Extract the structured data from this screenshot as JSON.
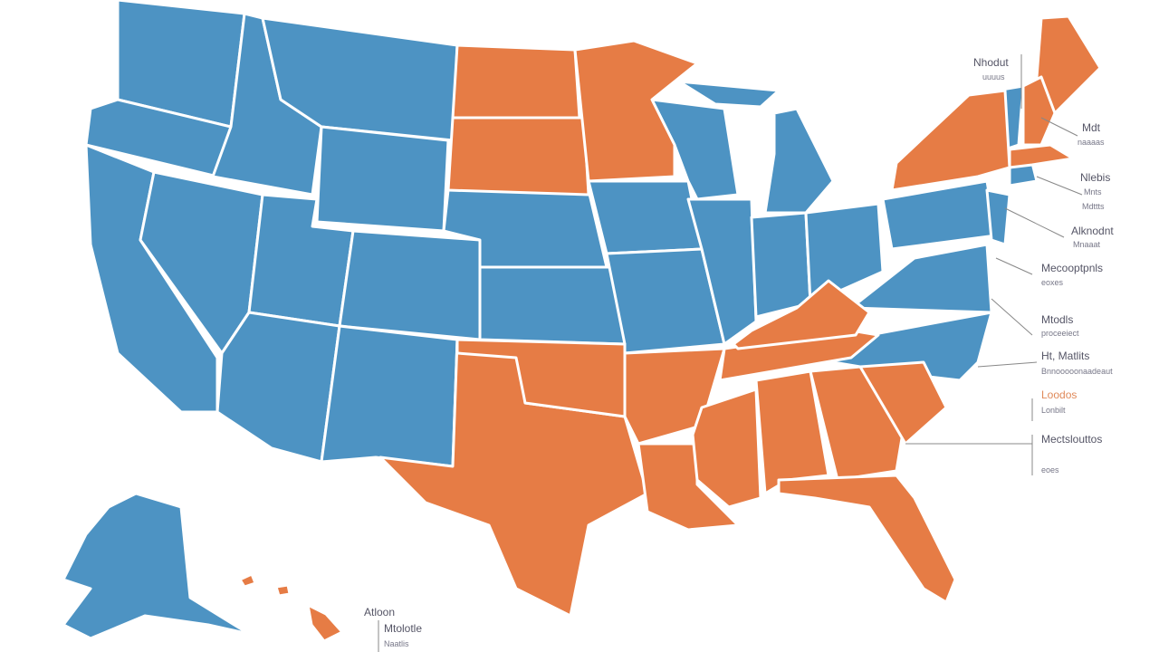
{
  "map": {
    "callouts": [
      {
        "lines": [
          "Nhodut",
          "uuuus"
        ]
      },
      {
        "lines": [
          "Mdt",
          "naaaas"
        ]
      },
      {
        "lines": [
          "Nlebis",
          "Mnts",
          "Mdttts"
        ]
      },
      {
        "lines": [
          "Alknodnt",
          "Mnaaat"
        ]
      },
      {
        "lines": [
          "Mecooptpnls",
          "eoxes"
        ]
      },
      {
        "lines": [
          "Mtodls",
          "proceeiect"
        ]
      },
      {
        "lines": [
          "Ht, Matlits",
          "Bnnooooonaadeaut"
        ]
      },
      {
        "lines": [
          "Loodos",
          "Lonbilt"
        ]
      },
      {
        "lines": [
          "Mectslouttos",
          "eoes"
        ]
      },
      {
        "lines": [
          "Atloon",
          "Mtolotle",
          "Naatlis"
        ]
      }
    ]
  }
}
